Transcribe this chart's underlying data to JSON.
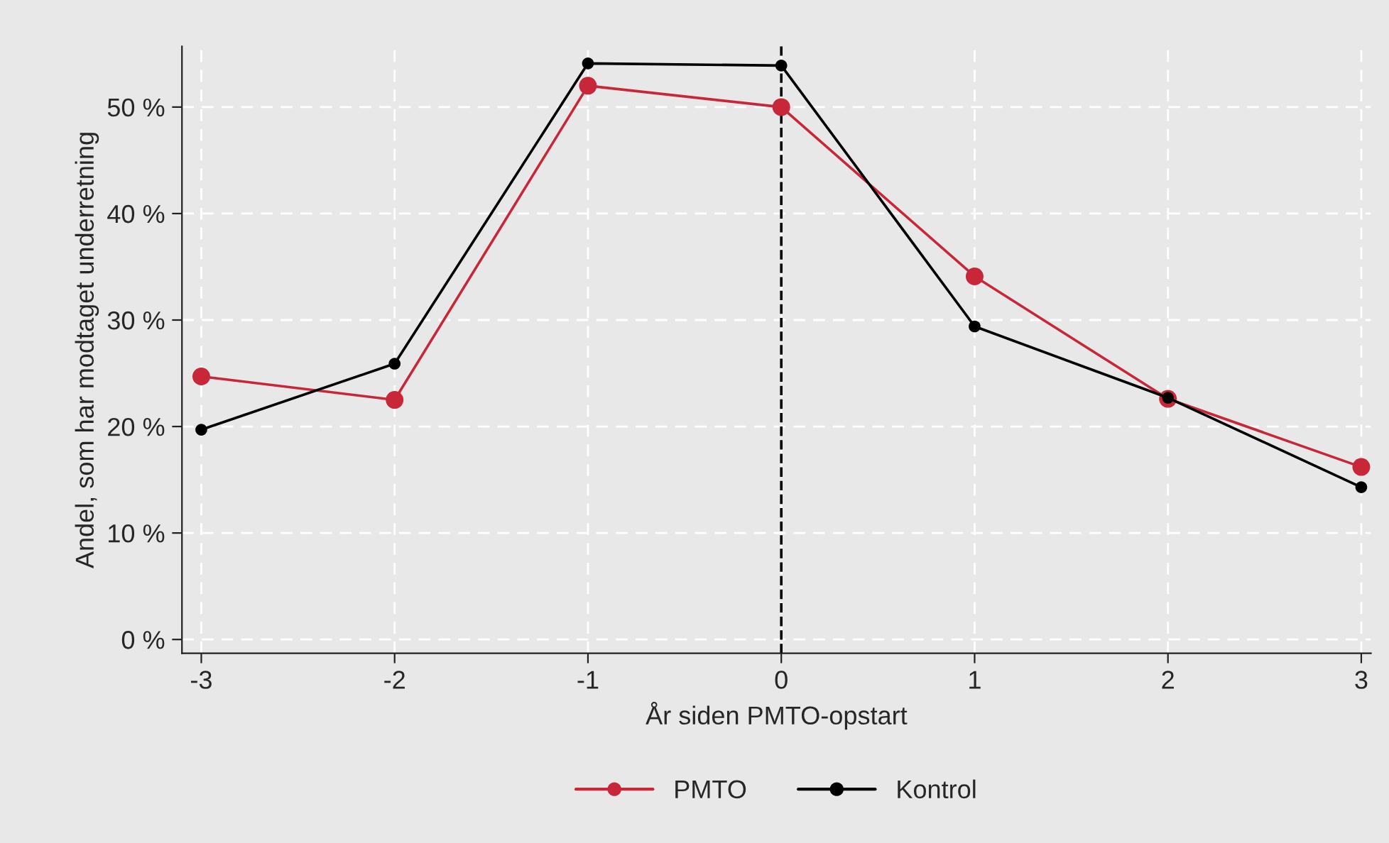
{
  "chart_data": {
    "type": "line",
    "xlabel": "År siden PMTO-opstart",
    "ylabel": "Andel, som har modtaget underretning",
    "x": [
      -3,
      -2,
      -1,
      0,
      1,
      2,
      3
    ],
    "series": [
      {
        "name": "PMTO",
        "color": "#c8273a",
        "values": [
          24.7,
          22.5,
          52.0,
          50.0,
          34.1,
          22.6,
          16.2
        ]
      },
      {
        "name": "Kontrol",
        "color": "#000000",
        "values": [
          19.7,
          25.9,
          54.1,
          53.9,
          29.4,
          22.7,
          14.3
        ]
      }
    ],
    "xlim": [
      -3.1,
      3.05
    ],
    "xticks": [
      -3,
      -2,
      -1,
      0,
      1,
      2,
      3
    ],
    "ylim": [
      -1.3,
      55.7
    ],
    "yticks": [
      {
        "value": 0,
        "label": "0 %"
      },
      {
        "value": 10,
        "label": "10 %"
      },
      {
        "value": 20,
        "label": "20 %"
      },
      {
        "value": 30,
        "label": "30 %"
      },
      {
        "value": 40,
        "label": "40 %"
      },
      {
        "value": 50,
        "label": "50 %"
      }
    ],
    "ref_lines": [
      {
        "axis": "x",
        "value": 0,
        "color": "#000000",
        "line_style": "dashed"
      }
    ],
    "grid": true,
    "legend": "bottom",
    "marker": "circle",
    "line_style": "solid"
  }
}
